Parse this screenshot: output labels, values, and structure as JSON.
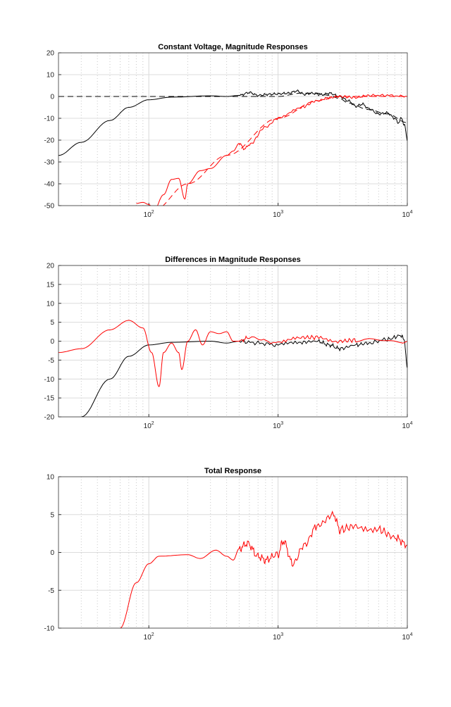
{
  "chart_data": [
    {
      "type": "line",
      "title": "Constant Voltage, Magnitude Responses",
      "xscale": "log",
      "xlim": [
        20,
        10000
      ],
      "ylim": [
        -50,
        20
      ],
      "yticks": [
        20,
        10,
        0,
        -10,
        -20,
        -30,
        -40,
        -50
      ],
      "xticks": [
        {
          "base": "10",
          "exp": "2"
        },
        {
          "base": "10",
          "exp": "3"
        },
        {
          "base": "10",
          "exp": "4"
        }
      ],
      "grid": true,
      "series": [
        {
          "name": "black-target",
          "color": "#000000",
          "dash": true,
          "x": [
            20,
            1000,
            1500,
            2000,
            2500,
            3000,
            3500,
            5000,
            7000,
            10000
          ],
          "y": [
            0,
            0,
            1.5,
            1.5,
            0.5,
            -1,
            -3,
            -6,
            -8,
            -12
          ]
        },
        {
          "name": "black-measured",
          "color": "#000000",
          "dash": false,
          "x": [
            20,
            30,
            50,
            70,
            100,
            150,
            300,
            400,
            500,
            600,
            700,
            850,
            1000,
            1200,
            1400,
            1600,
            1800,
            2200,
            2500,
            3000,
            3500,
            4000,
            4500,
            5000,
            6000,
            7000,
            8000,
            8500,
            9000,
            9500,
            10000
          ],
          "y": [
            -27,
            -21,
            -11,
            -5,
            -1.5,
            -0.3,
            0.3,
            0,
            0.5,
            1.8,
            0.5,
            1,
            1.2,
            1.5,
            2.5,
            1,
            1.5,
            0.8,
            1.5,
            0,
            -2,
            -4.5,
            -3.5,
            -5.5,
            -8,
            -7.5,
            -10,
            -12,
            -10,
            -13,
            -20
          ]
        },
        {
          "name": "red-target",
          "color": "#ff0000",
          "dash": true,
          "x": [
            110,
            200,
            400,
            1000,
            2000,
            3000,
            10000
          ],
          "y": [
            -52,
            -40,
            -27,
            -10,
            -2,
            0,
            0
          ]
        },
        {
          "name": "red-measured",
          "color": "#ff0000",
          "dash": false,
          "x": [
            80,
            90,
            100,
            110,
            130,
            150,
            170,
            190,
            200,
            250,
            300,
            400,
            450,
            500,
            550,
            600,
            800,
            1000,
            1500,
            2000,
            2500,
            3000,
            4000,
            5000,
            7000,
            10000
          ],
          "y": [
            -49,
            -48.5,
            -49.5,
            -52,
            -45,
            -38,
            -37.5,
            -47,
            -40,
            -34,
            -33,
            -27,
            -25,
            -21.5,
            -24,
            -22,
            -14,
            -10,
            -5,
            -2,
            -0.5,
            0,
            -0.5,
            0.5,
            0.5,
            0
          ]
        }
      ]
    },
    {
      "type": "line",
      "title": "Differences in Magnitude Responses",
      "xscale": "log",
      "xlim": [
        20,
        10000
      ],
      "ylim": [
        -20,
        20
      ],
      "yticks": [
        20,
        15,
        10,
        5,
        0,
        -5,
        -10,
        -15,
        -20
      ],
      "xticks": [
        {
          "base": "10",
          "exp": "2"
        },
        {
          "base": "10",
          "exp": "3"
        },
        {
          "base": "10",
          "exp": "4"
        }
      ],
      "grid": true,
      "series": [
        {
          "name": "black",
          "color": "#000000",
          "dash": false,
          "x": [
            30,
            50,
            70,
            100,
            150,
            300,
            400,
            500,
            700,
            1000,
            1500,
            2000,
            2500,
            3000,
            4000,
            5000,
            7000,
            9000,
            9500,
            10000
          ],
          "y": [
            -20,
            -10,
            -4,
            -1,
            -0.3,
            0,
            -0.5,
            0,
            -0.5,
            -1,
            -0.3,
            0,
            -1,
            -2,
            -1,
            -0.5,
            0.5,
            1.5,
            0,
            -7
          ]
        },
        {
          "name": "red",
          "color": "#ff0000",
          "dash": false,
          "x": [
            20,
            30,
            50,
            70,
            90,
            105,
            120,
            130,
            150,
            170,
            180,
            200,
            230,
            260,
            300,
            350,
            400,
            450,
            500,
            600,
            1000,
            1500,
            2000,
            3000,
            4000,
            10000
          ],
          "y": [
            -3,
            -2,
            3,
            5.5,
            3.5,
            -3,
            -12,
            -3,
            -0.5,
            -3,
            -7.5,
            0,
            3,
            -1,
            2.5,
            2,
            2.5,
            0,
            0,
            1,
            -0.5,
            1,
            1,
            0,
            0.3,
            0
          ]
        }
      ]
    },
    {
      "type": "line",
      "title": "Total Response",
      "xscale": "log",
      "xlim": [
        20,
        10000
      ],
      "ylim": [
        -10,
        10
      ],
      "yticks": [
        10,
        5,
        0,
        -5,
        -10
      ],
      "xticks": [
        {
          "base": "10",
          "exp": "2"
        },
        {
          "base": "10",
          "exp": "3"
        },
        {
          "base": "10",
          "exp": "4"
        }
      ],
      "grid": true,
      "series": [
        {
          "name": "red",
          "color": "#ff0000",
          "dash": false,
          "x": [
            60,
            80,
            100,
            120,
            200,
            250,
            330,
            400,
            450,
            500,
            580,
            700,
            800,
            1000,
            1100,
            1300,
            1600,
            2000,
            2700,
            3000,
            4000,
            6000,
            8000,
            10000
          ],
          "y": [
            -10,
            -4,
            -1.5,
            -0.5,
            -0.3,
            -0.8,
            0.3,
            -0.5,
            -1,
            0.5,
            1.2,
            -0.5,
            -1,
            -0.2,
            1.5,
            -1.5,
            1,
            3.5,
            5,
            3,
            3.5,
            3,
            2,
            1
          ]
        }
      ]
    }
  ]
}
